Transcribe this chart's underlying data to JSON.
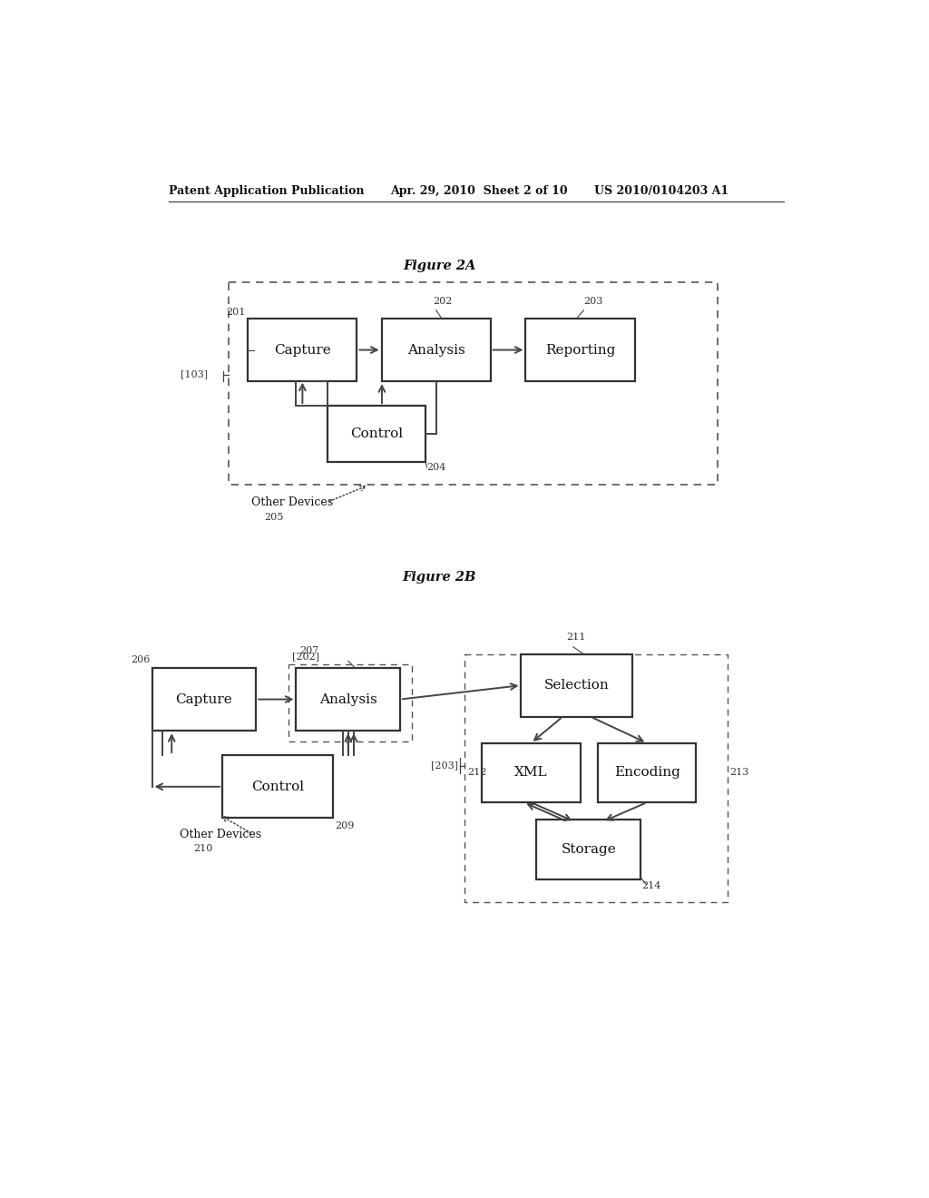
{
  "bg_color": "#ffffff",
  "header_left": "Patent Application Publication",
  "header_mid": "Apr. 29, 2010  Sheet 2 of 10",
  "header_right": "US 2010/0104203 A1",
  "fig2a_title": "Figure 2A",
  "fig2b_title": "Figure 2B",
  "line_color": "#444444",
  "box_color": "#222222",
  "text_color": "#111111",
  "label_color": "#333333"
}
